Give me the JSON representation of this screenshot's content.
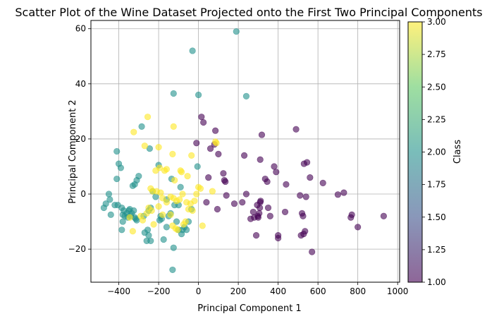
{
  "chart_data": {
    "type": "scatter",
    "title": "Scatter Plot of the Wine Dataset Projected onto the First Two Principal Components",
    "xlabel": "Principal Component 1",
    "ylabel": "Principal Component 2",
    "xlim": [
      -540,
      1010
    ],
    "ylim": [
      -32,
      63
    ],
    "xticks": [
      -400,
      -200,
      0,
      200,
      400,
      600,
      800,
      1000
    ],
    "xtick_labels": [
      "−400",
      "−200",
      "0",
      "200",
      "400",
      "600",
      "800",
      "1000"
    ],
    "yticks": [
      -20,
      0,
      20,
      40,
      60
    ],
    "ytick_labels": [
      "−20",
      "0",
      "20",
      "40",
      "60"
    ],
    "grid": true,
    "marker_alpha": 0.6,
    "colorbar": {
      "label": "Class",
      "range": [
        1.0,
        3.0
      ],
      "ticks": [
        1.0,
        1.25,
        1.5,
        1.75,
        2.0,
        2.25,
        2.5,
        2.75,
        3.0
      ],
      "tick_labels": [
        "1.00",
        "1.25",
        "1.50",
        "1.75",
        "2.00",
        "2.25",
        "2.50",
        "2.75",
        "3.00"
      ],
      "colormap": "viridis",
      "colors": [
        "#440154",
        "#3b528b",
        "#21918c",
        "#5ec962",
        "#fde725"
      ]
    },
    "series": [
      {
        "class": 1,
        "color": "#440154",
        "points": [
          [
            930,
            -8
          ],
          [
            800,
            -12
          ],
          [
            770,
            -7.5
          ],
          [
            765,
            -8.5
          ],
          [
            730,
            0.5
          ],
          [
            700,
            -0.2
          ],
          [
            625,
            4
          ],
          [
            570,
            -21
          ],
          [
            560,
            6
          ],
          [
            545,
            11.5
          ],
          [
            540,
            -1
          ],
          [
            535,
            -13.5
          ],
          [
            530,
            11
          ],
          [
            528,
            -14.5
          ],
          [
            520,
            -7
          ],
          [
            515,
            -15
          ],
          [
            525,
            -8
          ],
          [
            510,
            -0.5
          ],
          [
            490,
            23.5
          ],
          [
            440,
            3.5
          ],
          [
            435,
            -6.5
          ],
          [
            400,
            -16
          ],
          [
            400,
            -15
          ],
          [
            390,
            8
          ],
          [
            380,
            10
          ],
          [
            360,
            -8
          ],
          [
            350,
            -5
          ],
          [
            345,
            4.5
          ],
          [
            335,
            5.5
          ],
          [
            318,
            21.5
          ],
          [
            312,
            -2.5
          ],
          [
            310,
            -3
          ],
          [
            308,
            -5
          ],
          [
            305,
            -7
          ],
          [
            300,
            -8.5
          ],
          [
            298,
            -8
          ],
          [
            295,
            -4
          ],
          [
            290,
            -15
          ],
          [
            280,
            -8.5
          ],
          [
            275,
            -6.5
          ],
          [
            310,
            12.5
          ],
          [
            262,
            -9
          ],
          [
            240,
            0
          ],
          [
            230,
            14
          ],
          [
            220,
            -3
          ],
          [
            180,
            -3.5
          ],
          [
            140,
            -0.5
          ],
          [
            135,
            4.5
          ],
          [
            130,
            5
          ],
          [
            125,
            7.5
          ],
          [
            100,
            14.5
          ],
          [
            95,
            -5.5
          ],
          [
            85,
            23
          ],
          [
            80,
            18
          ],
          [
            60,
            16.5
          ],
          [
            50,
            6
          ],
          [
            40,
            -3
          ],
          [
            25,
            26
          ],
          [
            15,
            28
          ],
          [
            -10,
            18.5
          ]
        ]
      },
      {
        "class": 2,
        "color": "#21918c",
        "points": [
          [
            190,
            59
          ],
          [
            240,
            35.5
          ],
          [
            -30,
            52
          ],
          [
            0,
            36
          ],
          [
            -125,
            36.5
          ],
          [
            -410,
            15.5
          ],
          [
            -400,
            11
          ],
          [
            -390,
            9.5
          ],
          [
            -410,
            5.5
          ],
          [
            -420,
            -4
          ],
          [
            -405,
            -4
          ],
          [
            -445,
            -2
          ],
          [
            -450,
            0
          ],
          [
            -465,
            -3.5
          ],
          [
            -475,
            -5
          ],
          [
            -440,
            -7.5
          ],
          [
            -385,
            -5
          ],
          [
            -380,
            -7.5
          ],
          [
            -375,
            -6
          ],
          [
            -370,
            -8
          ],
          [
            -360,
            -7
          ],
          [
            -355,
            -8.5
          ],
          [
            -350,
            -6
          ],
          [
            -345,
            -5.5
          ],
          [
            -340,
            -8
          ],
          [
            -335,
            -7
          ],
          [
            -325,
            -6
          ],
          [
            -320,
            -8.5
          ],
          [
            -315,
            -9
          ],
          [
            -310,
            -9.5
          ],
          [
            -380,
            -10
          ],
          [
            -385,
            -13
          ],
          [
            -330,
            3
          ],
          [
            -320,
            3.5
          ],
          [
            -310,
            5
          ],
          [
            -300,
            6.5
          ],
          [
            -285,
            24.5
          ],
          [
            -245,
            16.5
          ],
          [
            -230,
            1
          ],
          [
            -275,
            -8
          ],
          [
            -270,
            -14
          ],
          [
            -260,
            -17
          ],
          [
            -250,
            -15
          ],
          [
            -240,
            -17
          ],
          [
            -255,
            -13
          ],
          [
            -250,
            -6
          ],
          [
            -240,
            -5
          ],
          [
            -200,
            10.5
          ],
          [
            -190,
            -8
          ],
          [
            -185,
            -9
          ],
          [
            -195,
            -9.5
          ],
          [
            -175,
            -16.5
          ],
          [
            -160,
            -12
          ],
          [
            -135,
            5.5
          ],
          [
            -125,
            -19.5
          ],
          [
            -130,
            -27.5
          ],
          [
            -90,
            2.5
          ],
          [
            -100,
            -13
          ],
          [
            -80,
            -13
          ],
          [
            -60,
            -13
          ],
          [
            -50,
            -10
          ],
          [
            -35,
            -5.5
          ],
          [
            -5,
            10
          ],
          [
            -120,
            -4
          ],
          [
            -110,
            -10
          ],
          [
            -140,
            -7
          ],
          [
            -100,
            -4
          ],
          [
            -85,
            -14.5
          ],
          [
            -70,
            -12
          ],
          [
            -150,
            -8
          ],
          [
            -215,
            -1
          ],
          [
            -160,
            -2
          ]
        ]
      },
      {
        "class": 3,
        "color": "#fde725",
        "points": [
          [
            -255,
            28
          ],
          [
            -125,
            24.5
          ],
          [
            -325,
            22.5
          ],
          [
            -270,
            17.5
          ],
          [
            -200,
            17
          ],
          [
            -130,
            14.5
          ],
          [
            -35,
            14
          ],
          [
            -215,
            8.5
          ],
          [
            -195,
            9.5
          ],
          [
            -170,
            8.5
          ],
          [
            -160,
            9
          ],
          [
            -90,
            8.5
          ],
          [
            -85,
            8
          ],
          [
            -55,
            6.5
          ],
          [
            -120,
            5
          ],
          [
            -240,
            2
          ],
          [
            -230,
            1
          ],
          [
            -210,
            1
          ],
          [
            -190,
            0.5
          ],
          [
            -180,
            -1.5
          ],
          [
            -140,
            -1
          ],
          [
            -125,
            -1.5
          ],
          [
            -110,
            -2.5
          ],
          [
            -95,
            -2
          ],
          [
            -80,
            0
          ],
          [
            -60,
            -3
          ],
          [
            -50,
            -5.5
          ],
          [
            -40,
            -3.5
          ],
          [
            -30,
            -6
          ],
          [
            -20,
            -2.5
          ],
          [
            -10,
            0
          ],
          [
            0,
            2.5
          ],
          [
            10,
            2
          ],
          [
            20,
            -11.5
          ],
          [
            70,
            1
          ],
          [
            85,
            19
          ],
          [
            90,
            18.5
          ],
          [
            -345,
            -8.5
          ],
          [
            -290,
            -8
          ],
          [
            -280,
            -9.5
          ],
          [
            -260,
            -7
          ],
          [
            -250,
            -5
          ],
          [
            -235,
            -6
          ],
          [
            -225,
            -11
          ],
          [
            -200,
            -4.5
          ],
          [
            -180,
            -7.5
          ],
          [
            -140,
            -7.5
          ],
          [
            -130,
            -11.5
          ],
          [
            -115,
            -12.5
          ],
          [
            -105,
            -13
          ],
          [
            -75,
            -11
          ],
          [
            -65,
            -10
          ],
          [
            -160,
            -3
          ],
          [
            -330,
            -13.5
          ]
        ]
      }
    ]
  }
}
